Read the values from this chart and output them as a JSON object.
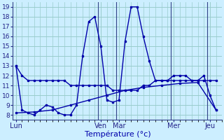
{
  "bg_color": "#cceeff",
  "grid_color": "#99cccc",
  "line_color": "#0000aa",
  "marker_color": "#0000aa",
  "xlabel": "Température (°c)",
  "ylabel_ticks": [
    8,
    9,
    10,
    11,
    12,
    13,
    14,
    15,
    16,
    17,
    18,
    19
  ],
  "x_day_labels": [
    "Lun",
    "Ven",
    "Mar",
    "Mer",
    "Jeu"
  ],
  "x_day_positions": [
    0,
    14,
    17,
    26,
    32
  ],
  "x_vlines": [
    13.5,
    16.5,
    25.5,
    31.5
  ],
  "xlim": [
    -0.5,
    34
  ],
  "ylim": [
    7.5,
    19.5
  ],
  "series1_x": [
    0,
    1,
    2,
    3,
    4,
    5,
    6,
    7,
    8,
    9,
    10,
    11,
    12,
    13,
    14,
    15,
    16,
    17,
    18,
    19,
    20,
    21,
    22,
    23,
    24,
    25,
    26,
    27,
    28,
    29,
    30,
    31,
    32,
    33
  ],
  "series1_y": [
    13,
    12,
    11.5,
    11.5,
    11.5,
    11.5,
    11.5,
    11.5,
    11.5,
    11,
    11,
    11,
    11,
    11,
    11,
    11,
    10.5,
    10.5,
    10.5,
    10.5,
    10.5,
    11,
    11,
    11.5,
    11.5,
    11.5,
    11.5,
    11.5,
    11.5,
    11.5,
    11.5,
    11.5,
    11.5,
    11.5
  ],
  "series2_x": [
    0,
    1,
    2,
    3,
    4,
    5,
    6,
    7,
    8,
    9,
    10,
    11,
    12,
    13,
    14,
    15,
    16,
    17,
    18,
    19,
    20,
    21,
    22,
    23,
    24,
    25,
    26,
    27,
    28,
    29,
    30,
    31,
    32,
    33
  ],
  "series2_y": [
    13,
    8.5,
    8.2,
    8,
    8.5,
    9,
    8.8,
    8.2,
    8.0,
    8.0,
    9.0,
    14,
    17.5,
    18,
    15,
    9.5,
    9.3,
    9.5,
    15.5,
    19,
    19,
    16,
    13.5,
    11.5,
    11.5,
    11.5,
    12,
    12,
    12,
    11.5,
    11.5,
    12,
    10,
    8.5
  ],
  "series3_x": [
    0,
    3,
    6,
    9,
    12,
    15,
    18,
    21,
    24,
    27,
    30,
    33
  ],
  "series3_y": [
    8.2,
    8.3,
    8.5,
    9.0,
    9.5,
    10.0,
    10.5,
    10.8,
    11.0,
    11.2,
    11.3,
    8.5
  ]
}
